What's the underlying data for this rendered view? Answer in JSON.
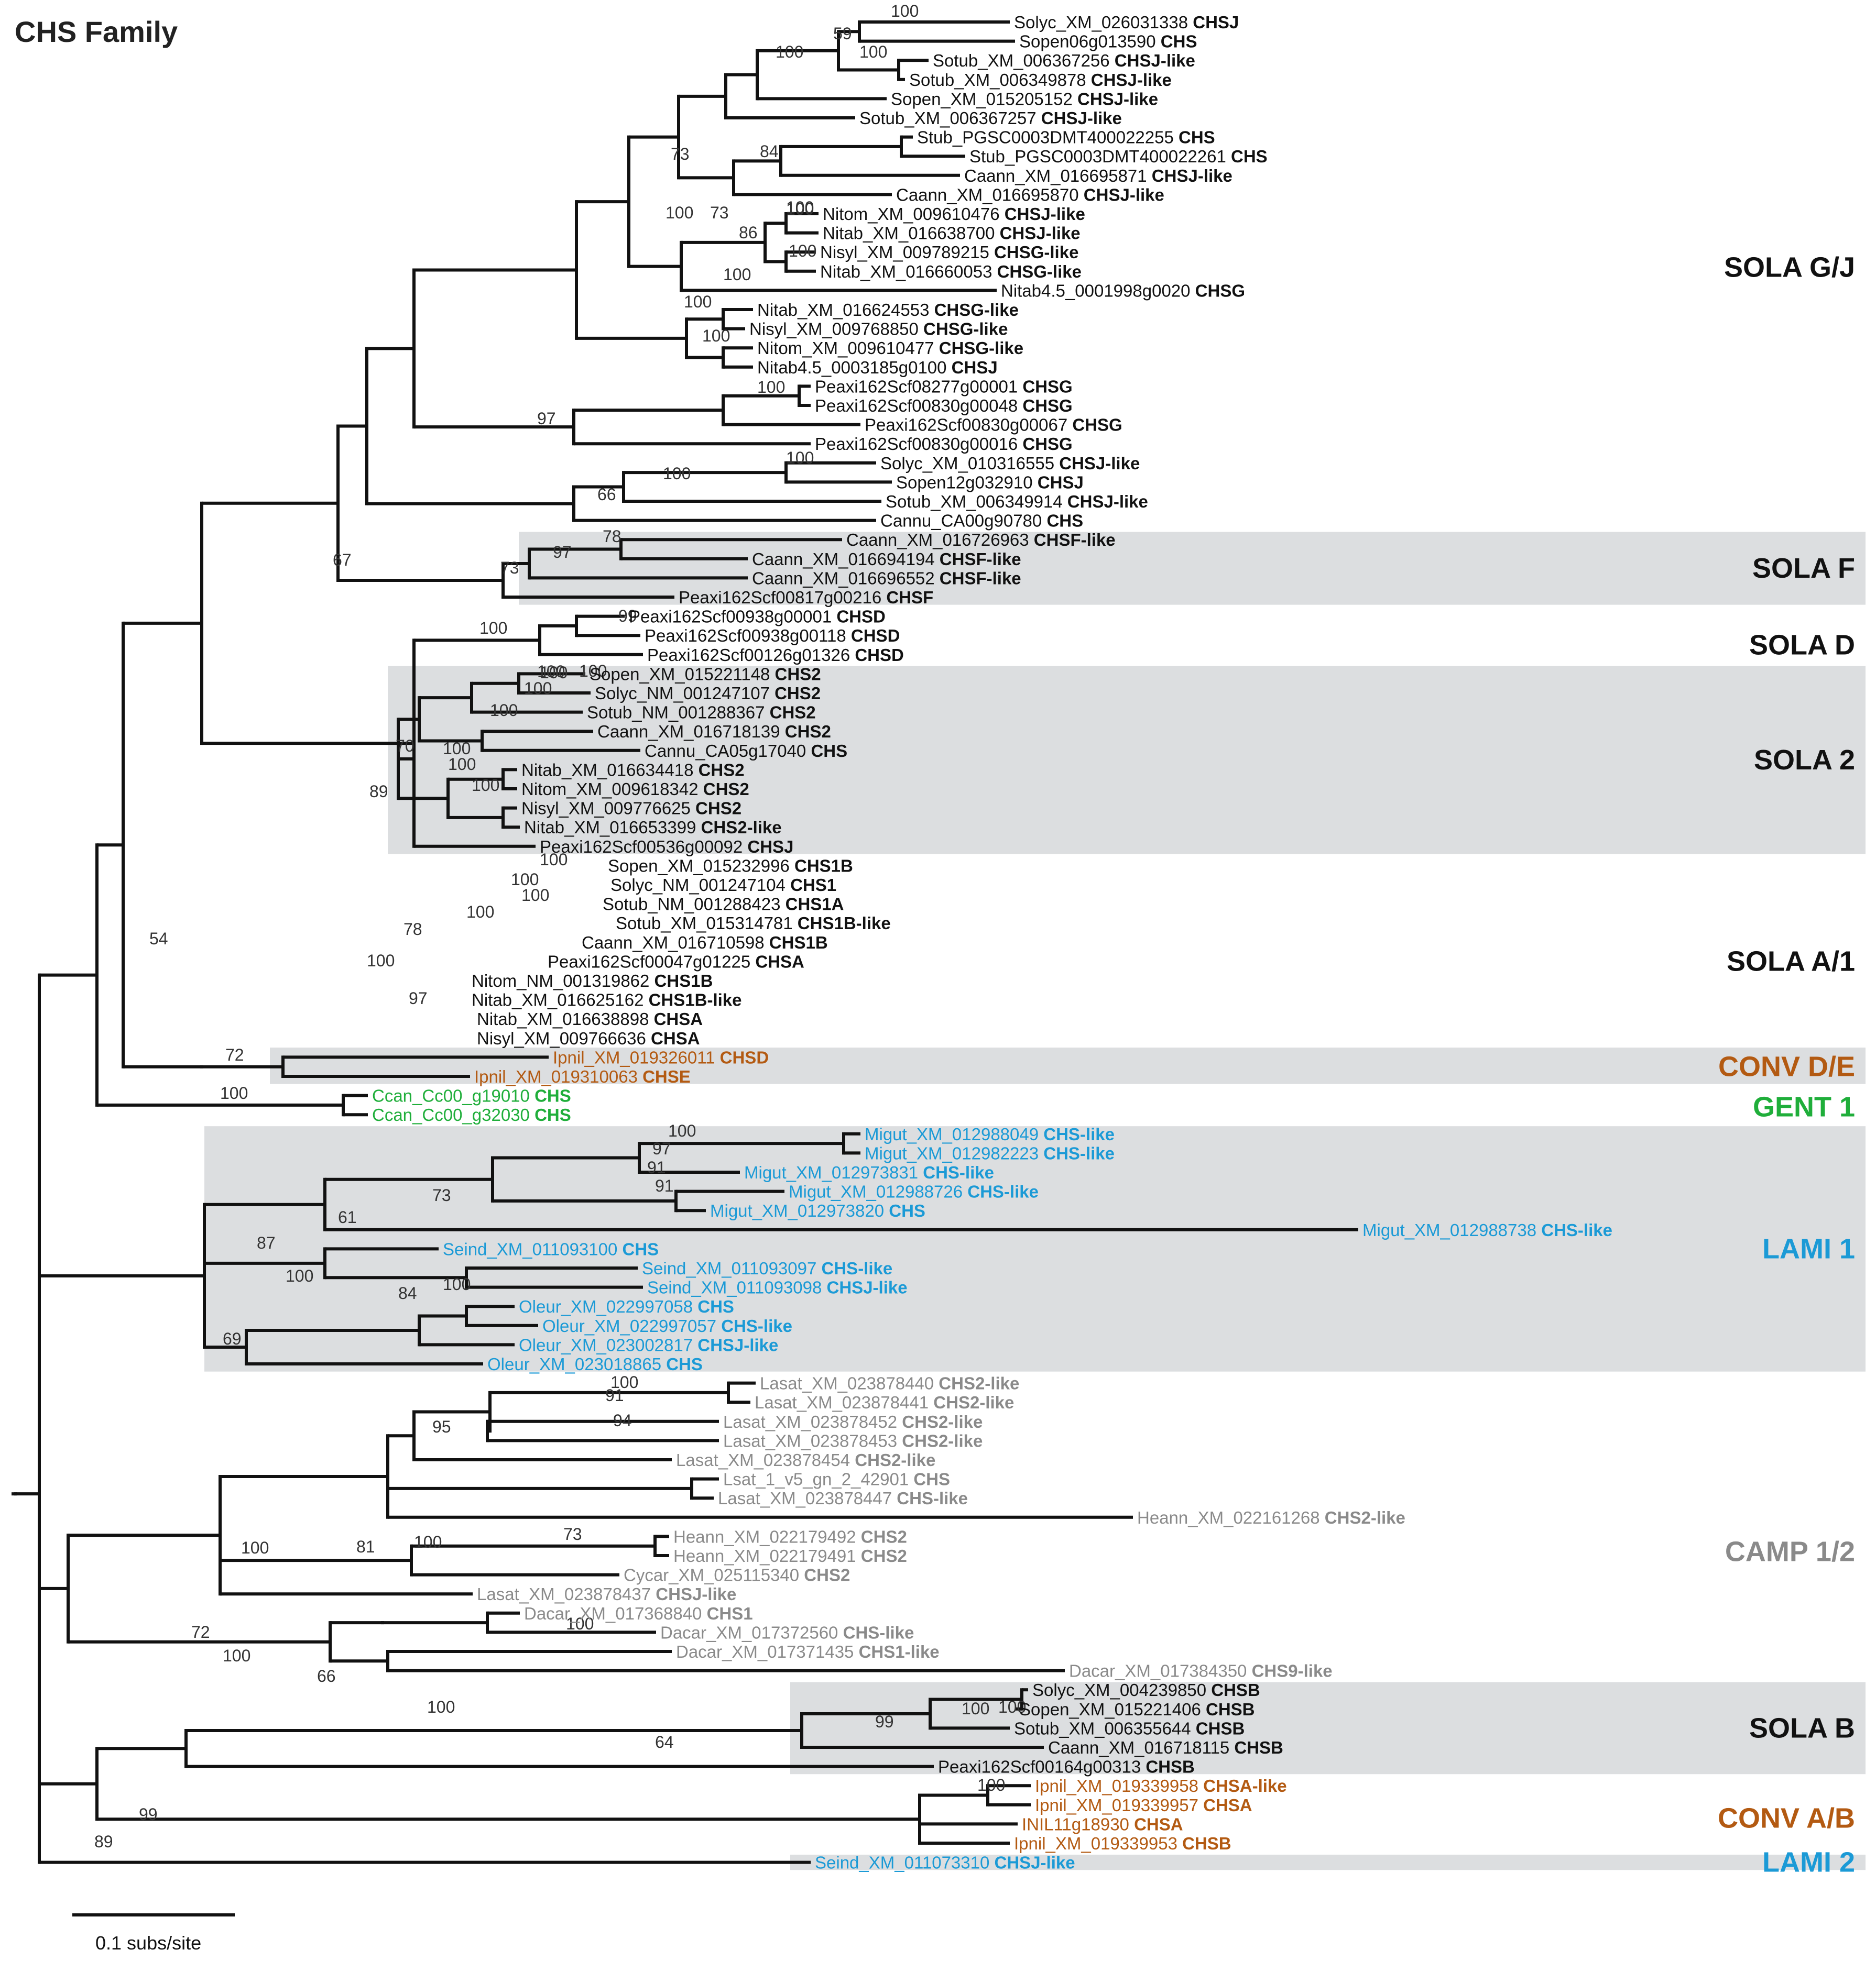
{
  "title": "CHS Family",
  "scale_label": "0.1 subs/site",
  "colors": {
    "sola": "#111111",
    "conv": "#b35a12",
    "gent": "#1fae3a",
    "lami": "#1b9ad6",
    "camp": "#8a8a8a",
    "band": "#dcdee0"
  },
  "clades": [
    {
      "id": "sola-gj",
      "label": "SOLA G/J",
      "color": "sola"
    },
    {
      "id": "sola-f",
      "label": "SOLA F",
      "color": "sola"
    },
    {
      "id": "sola-d",
      "label": "SOLA D",
      "color": "sola"
    },
    {
      "id": "sola-2",
      "label": "SOLA 2",
      "color": "sola"
    },
    {
      "id": "sola-a1",
      "label": "SOLA A/1",
      "color": "sola"
    },
    {
      "id": "conv-de",
      "label": "CONV D/E",
      "color": "conv"
    },
    {
      "id": "gent-1",
      "label": "GENT 1",
      "color": "gent"
    },
    {
      "id": "lami-1",
      "label": "LAMI 1",
      "color": "lami"
    },
    {
      "id": "camp-12",
      "label": "CAMP 1/2",
      "color": "camp"
    },
    {
      "id": "sola-b",
      "label": "SOLA B",
      "color": "sola"
    },
    {
      "id": "conv-ab",
      "label": "CONV A/B",
      "color": "conv"
    },
    {
      "id": "lami-2",
      "label": "LAMI 2",
      "color": "lami"
    }
  ],
  "leaves": [
    {
      "name": "Solyc_XM_026031338",
      "gene": "CHSJ",
      "color": "sola"
    },
    {
      "name": "Sopen06g013590",
      "gene": "CHS",
      "color": "sola"
    },
    {
      "name": "Sotub_XM_006367256",
      "gene": "CHSJ-like",
      "color": "sola"
    },
    {
      "name": "Sotub_XM_006349878",
      "gene": "CHSJ-like",
      "color": "sola"
    },
    {
      "name": "Sopen_XM_015205152",
      "gene": "CHSJ-like",
      "color": "sola"
    },
    {
      "name": "Sotub_XM_006367257",
      "gene": "CHSJ-like",
      "color": "sola"
    },
    {
      "name": "Stub_PGSC0003DMT400022255",
      "gene": "CHS",
      "color": "sola"
    },
    {
      "name": "Stub_PGSC0003DMT400022261",
      "gene": "CHS",
      "color": "sola"
    },
    {
      "name": "Caann_XM_016695871",
      "gene": "CHSJ-like",
      "color": "sola"
    },
    {
      "name": "Caann_XM_016695870",
      "gene": "CHSJ-like",
      "color": "sola"
    },
    {
      "name": "Nitom_XM_009610476",
      "gene": "CHSJ-like",
      "color": "sola"
    },
    {
      "name": "Nitab_XM_016638700",
      "gene": "CHSJ-like",
      "color": "sola"
    },
    {
      "name": "Nisyl_XM_009789215",
      "gene": "CHSG-like",
      "color": "sola"
    },
    {
      "name": "Nitab_XM_016660053",
      "gene": "CHSG-like",
      "color": "sola"
    },
    {
      "name": "Nitab4.5_0001998g0020",
      "gene": "CHSG",
      "color": "sola"
    },
    {
      "name": "Nitab_XM_016624553",
      "gene": "CHSG-like",
      "color": "sola"
    },
    {
      "name": "Nisyl_XM_009768850",
      "gene": "CHSG-like",
      "color": "sola"
    },
    {
      "name": "Nitom_XM_009610477",
      "gene": "CHSG-like",
      "color": "sola"
    },
    {
      "name": "Nitab4.5_0003185g0100",
      "gene": "CHSJ",
      "color": "sola"
    },
    {
      "name": "Peaxi162Scf08277g00001",
      "gene": "CHSG",
      "color": "sola"
    },
    {
      "name": "Peaxi162Scf00830g00048",
      "gene": "CHSG",
      "color": "sola"
    },
    {
      "name": "Peaxi162Scf00830g00067",
      "gene": "CHSG",
      "color": "sola"
    },
    {
      "name": "Peaxi162Scf00830g00016",
      "gene": "CHSG",
      "color": "sola"
    },
    {
      "name": "Solyc_XM_010316555",
      "gene": "CHSJ-like",
      "color": "sola"
    },
    {
      "name": "Sopen12g032910",
      "gene": "CHSJ",
      "color": "sola"
    },
    {
      "name": "Sotub_XM_006349914",
      "gene": "CHSJ-like",
      "color": "sola"
    },
    {
      "name": "Cannu_CA00g90780",
      "gene": "CHS",
      "color": "sola"
    },
    {
      "name": "Caann_XM_016726963",
      "gene": "CHSF-like",
      "color": "sola"
    },
    {
      "name": "Caann_XM_016694194",
      "gene": "CHSF-like",
      "color": "sola"
    },
    {
      "name": "Caann_XM_016696552",
      "gene": "CHSF-like",
      "color": "sola"
    },
    {
      "name": "Peaxi162Scf00817g00216",
      "gene": "CHSF",
      "color": "sola"
    },
    {
      "name": "Peaxi162Scf00938g00001",
      "gene": "CHSD",
      "color": "sola"
    },
    {
      "name": "Peaxi162Scf00938g00118",
      "gene": "CHSD",
      "color": "sola"
    },
    {
      "name": "Peaxi162Scf00126g01326",
      "gene": "CHSD",
      "color": "sola"
    },
    {
      "name": "Sopen_XM_015221148",
      "gene": "CHS2",
      "color": "sola"
    },
    {
      "name": "Solyc_NM_001247107",
      "gene": "CHS2",
      "color": "sola"
    },
    {
      "name": "Sotub_NM_001288367",
      "gene": "CHS2",
      "color": "sola"
    },
    {
      "name": "Caann_XM_016718139",
      "gene": "CHS2",
      "color": "sola"
    },
    {
      "name": "Cannu_CA05g17040",
      "gene": "CHS",
      "color": "sola"
    },
    {
      "name": "Nitab_XM_016634418",
      "gene": "CHS2",
      "color": "sola"
    },
    {
      "name": "Nitom_XM_009618342",
      "gene": "CHS2",
      "color": "sola"
    },
    {
      "name": "Nisyl_XM_009776625",
      "gene": "CHS2",
      "color": "sola"
    },
    {
      "name": "Nitab_XM_016653399",
      "gene": "CHS2-like",
      "color": "sola"
    },
    {
      "name": "Peaxi162Scf00536g00092",
      "gene": "CHSJ",
      "color": "sola"
    },
    {
      "name": "Sopen_XM_015232996",
      "gene": "CHS1B",
      "color": "sola"
    },
    {
      "name": "Solyc_NM_001247104",
      "gene": "CHS1",
      "color": "sola"
    },
    {
      "name": "Sotub_NM_001288423",
      "gene": "CHS1A",
      "color": "sola"
    },
    {
      "name": "Sotub_XM_015314781",
      "gene": "CHS1B-like",
      "color": "sola"
    },
    {
      "name": "Caann_XM_016710598",
      "gene": "CHS1B",
      "color": "sola"
    },
    {
      "name": "Peaxi162Scf00047g01225",
      "gene": "CHSA",
      "color": "sola"
    },
    {
      "name": "Nitom_NM_001319862",
      "gene": "CHS1B",
      "color": "sola"
    },
    {
      "name": "Nitab_XM_016625162",
      "gene": "CHS1B-like",
      "color": "sola"
    },
    {
      "name": "Nitab_XM_016638898",
      "gene": "CHSA",
      "color": "sola"
    },
    {
      "name": "Nisyl_XM_009766636",
      "gene": "CHSA",
      "color": "sola"
    },
    {
      "name": "Ipnil_XM_019326011",
      "gene": "CHSD",
      "color": "conv"
    },
    {
      "name": "Ipnil_XM_019310063",
      "gene": "CHSE",
      "color": "conv"
    },
    {
      "name": "Ccan_Cc00_g19010",
      "gene": "CHS",
      "color": "gent"
    },
    {
      "name": "Ccan_Cc00_g32030",
      "gene": "CHS",
      "color": "gent"
    },
    {
      "name": "Migut_XM_012988049",
      "gene": "CHS-like",
      "color": "lami"
    },
    {
      "name": "Migut_XM_012982223",
      "gene": "CHS-like",
      "color": "lami"
    },
    {
      "name": "Migut_XM_012973831",
      "gene": "CHS-like",
      "color": "lami"
    },
    {
      "name": "Migut_XM_012988726",
      "gene": "CHS-like",
      "color": "lami"
    },
    {
      "name": "Migut_XM_012973820",
      "gene": "CHS",
      "color": "lami"
    },
    {
      "name": "Migut_XM_012988738",
      "gene": "CHS-like",
      "color": "lami"
    },
    {
      "name": "Seind_XM_011093100",
      "gene": "CHS",
      "color": "lami"
    },
    {
      "name": "Seind_XM_011093097",
      "gene": "CHS-like",
      "color": "lami"
    },
    {
      "name": "Seind_XM_011093098",
      "gene": "CHSJ-like",
      "color": "lami"
    },
    {
      "name": "Oleur_XM_022997058",
      "gene": "CHS",
      "color": "lami"
    },
    {
      "name": "Oleur_XM_022997057",
      "gene": "CHS-like",
      "color": "lami"
    },
    {
      "name": "Oleur_XM_023002817",
      "gene": "CHSJ-like",
      "color": "lami"
    },
    {
      "name": "Oleur_XM_023018865",
      "gene": "CHS",
      "color": "lami"
    },
    {
      "name": "Lasat_XM_023878440",
      "gene": "CHS2-like",
      "color": "camp"
    },
    {
      "name": "Lasat_XM_023878441",
      "gene": "CHS2-like",
      "color": "camp"
    },
    {
      "name": "Lasat_XM_023878452",
      "gene": "CHS2-like",
      "color": "camp"
    },
    {
      "name": "Lasat_XM_023878453",
      "gene": "CHS2-like",
      "color": "camp"
    },
    {
      "name": "Lasat_XM_023878454",
      "gene": "CHS2-like",
      "color": "camp"
    },
    {
      "name": "Lsat_1_v5_gn_2_42901",
      "gene": "CHS",
      "color": "camp"
    },
    {
      "name": "Lasat_XM_023878447",
      "gene": "CHS-like",
      "color": "camp"
    },
    {
      "name": "Heann_XM_022161268",
      "gene": "CHS2-like",
      "color": "camp"
    },
    {
      "name": "Heann_XM_022179492",
      "gene": "CHS2",
      "color": "camp"
    },
    {
      "name": "Heann_XM_022179491",
      "gene": "CHS2",
      "color": "camp"
    },
    {
      "name": "Cycar_XM_025115340",
      "gene": "CHS2",
      "color": "camp"
    },
    {
      "name": "Lasat_XM_023878437",
      "gene": "CHSJ-like",
      "color": "camp"
    },
    {
      "name": "Dacar_XM_017368840",
      "gene": "CHS1",
      "color": "camp"
    },
    {
      "name": "Dacar_XM_017372560",
      "gene": "CHS-like",
      "color": "camp"
    },
    {
      "name": "Dacar_XM_017371435",
      "gene": "CHS1-like",
      "color": "camp"
    },
    {
      "name": "Dacar_XM_017384350",
      "gene": "CHS9-like",
      "color": "camp"
    },
    {
      "name": "Solyc_XM_004239850",
      "gene": "CHSB",
      "color": "sola"
    },
    {
      "name": "Sopen_XM_015221406",
      "gene": "CHSB",
      "color": "sola"
    },
    {
      "name": "Sotub_XM_006355644",
      "gene": "CHSB",
      "color": "sola"
    },
    {
      "name": "Caann_XM_016718115",
      "gene": "CHSB",
      "color": "sola"
    },
    {
      "name": "Peaxi162Scf00164g00313",
      "gene": "CHSB",
      "color": "sola"
    },
    {
      "name": "Ipnil_XM_019339958",
      "gene": "CHSA-like",
      "color": "conv"
    },
    {
      "name": "Ipnil_XM_019339957",
      "gene": "CHSA",
      "color": "conv"
    },
    {
      "name": "INIL11g18930",
      "gene": "CHSA",
      "color": "conv"
    },
    {
      "name": "Ipnil_XM_019339953",
      "gene": "CHSB",
      "color": "conv"
    },
    {
      "name": "Seind_XM_011073310",
      "gene": "CHSJ-like",
      "color": "lami"
    }
  ],
  "bootstraps": [
    "100",
    "59",
    "100",
    "100",
    "73",
    "84",
    "100",
    "73",
    "100",
    "86",
    "100",
    "100",
    "100",
    "100",
    "100",
    "97",
    "100",
    "66",
    "100",
    "100",
    "67",
    "78",
    "97",
    "73",
    "100",
    "99",
    "100",
    "100",
    "100",
    "70",
    "100",
    "100",
    "89",
    "100",
    "100",
    "100",
    "100",
    "100",
    "100",
    "78",
    "100",
    "100",
    "97",
    "54",
    "72",
    "100",
    "100",
    "97",
    "91",
    "91",
    "73",
    "61",
    "87",
    "100",
    "100",
    "84",
    "69",
    "100",
    "91",
    "94",
    "95",
    "100",
    "81",
    "100",
    "73",
    "100",
    "72",
    "66",
    "100",
    "100",
    "99",
    "100",
    "100",
    "64",
    "99",
    "89",
    "100"
  ]
}
